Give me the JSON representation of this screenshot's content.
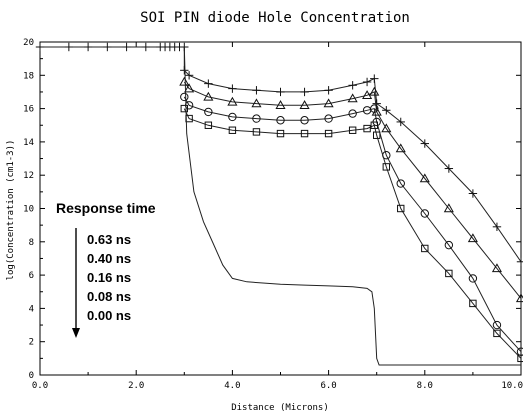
{
  "chart_data": {
    "type": "line",
    "title": "SOI PIN diode Hole Concentration",
    "xlabel": "Distance (Microns)",
    "ylabel": "log(Concentration (cm1-3))",
    "xlim": [
      0,
      10
    ],
    "ylim": [
      0,
      20
    ],
    "x_ticks": [
      0,
      2,
      4,
      6,
      8,
      10
    ],
    "x_tick_labels": [
      "0.0",
      "2.0",
      "4.0",
      "6.0",
      "8.0",
      "10.0"
    ],
    "y_ticks": [
      0,
      2,
      4,
      6,
      8,
      10,
      12,
      14,
      16,
      18,
      20
    ],
    "y_tick_labels": [
      "0",
      "2",
      "4",
      "6",
      "8",
      "10",
      "12",
      "14",
      "16",
      "18",
      "20"
    ],
    "grid": false,
    "annotation": {
      "title": "Response time",
      "entries": [
        "0.63 ns",
        "0.40 ns",
        "0.16 ns",
        "0.08 ns",
        "0.00 ns"
      ]
    },
    "series": [
      {
        "marker": "plus",
        "x": [
          0,
          0.6,
          1.0,
          1.4,
          1.8,
          2.2,
          2.5,
          2.6,
          2.7,
          2.8,
          2.9,
          3.0,
          3.0,
          3.1,
          3.5,
          4.0,
          4.5,
          5.0,
          5.5,
          6.0,
          6.5,
          6.8,
          6.95,
          7.0,
          7.2,
          7.5,
          8.0,
          8.5,
          9.0,
          9.5,
          10.0
        ],
        "y": [
          19.7,
          19.7,
          19.7,
          19.7,
          19.7,
          19.7,
          19.7,
          19.7,
          19.7,
          19.7,
          19.7,
          19.7,
          18.3,
          18.0,
          17.5,
          17.2,
          17.1,
          17.0,
          17.0,
          17.1,
          17.4,
          17.6,
          17.8,
          16.3,
          15.9,
          15.2,
          13.9,
          12.4,
          10.9,
          8.9,
          6.8
        ]
      },
      {
        "marker": "triangle",
        "x": [
          3.0,
          3.1,
          3.5,
          4.0,
          4.5,
          5.0,
          5.5,
          6.0,
          6.5,
          6.8,
          6.95,
          7.0,
          7.2,
          7.5,
          8.0,
          8.5,
          9.0,
          9.5,
          10.0
        ],
        "y": [
          17.6,
          17.2,
          16.7,
          16.4,
          16.3,
          16.2,
          16.2,
          16.3,
          16.6,
          16.8,
          17.0,
          15.8,
          14.8,
          13.6,
          11.8,
          10.0,
          8.2,
          6.4,
          4.6
        ]
      },
      {
        "marker": "circle",
        "x": [
          3.0,
          3.1,
          3.5,
          4.0,
          4.5,
          5.0,
          5.5,
          6.0,
          6.5,
          6.8,
          6.95,
          7.0,
          7.2,
          7.5,
          8.0,
          8.5,
          9.0,
          9.5,
          10.0
        ],
        "y": [
          16.7,
          16.2,
          15.8,
          15.5,
          15.4,
          15.3,
          15.3,
          15.4,
          15.7,
          15.9,
          16.0,
          15.2,
          13.2,
          11.5,
          9.7,
          7.8,
          5.8,
          3.0,
          1.4
        ]
      },
      {
        "marker": "square",
        "x": [
          3.0,
          3.1,
          3.5,
          4.0,
          4.5,
          5.0,
          5.5,
          6.0,
          6.5,
          6.8,
          6.95,
          7.0,
          7.2,
          7.5,
          8.0,
          8.5,
          9.0,
          9.5,
          10.0
        ],
        "y": [
          16.0,
          15.4,
          15.0,
          14.7,
          14.6,
          14.5,
          14.5,
          14.5,
          14.7,
          14.8,
          15.0,
          14.4,
          12.5,
          10.0,
          7.6,
          6.1,
          4.3,
          2.5,
          1.0
        ]
      },
      {
        "marker": "none",
        "x": [
          3.0,
          3.05,
          3.2,
          3.4,
          3.6,
          3.8,
          4.0,
          4.3,
          5.0,
          5.5,
          6.0,
          6.5,
          6.8,
          6.9,
          6.95,
          7.0,
          7.05,
          10.0
        ],
        "y": [
          19.7,
          14.5,
          11.0,
          9.2,
          7.9,
          6.6,
          5.8,
          5.6,
          5.45,
          5.4,
          5.35,
          5.3,
          5.2,
          5.0,
          4.0,
          1.0,
          0.6,
          0.6
        ]
      }
    ]
  }
}
